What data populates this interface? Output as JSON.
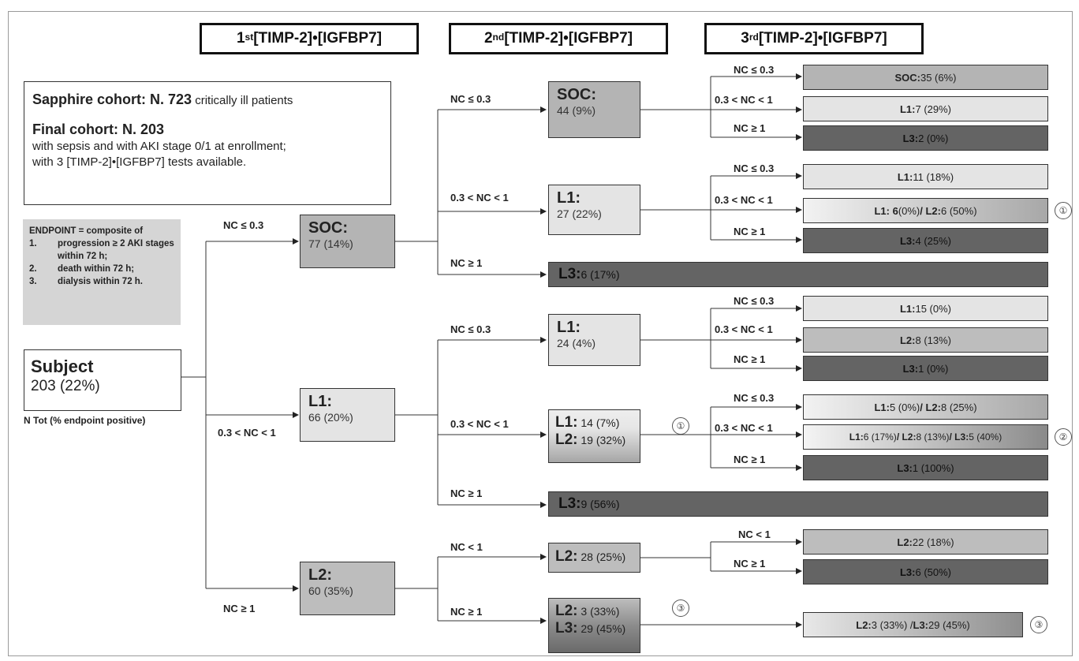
{
  "headers": [
    {
      "ord": "1",
      "sup": "st",
      "text": " [TIMP-2]•[IGFBP7]"
    },
    {
      "ord": "2",
      "sup": "nd",
      "text": " [TIMP-2]•[IGFBP7]"
    },
    {
      "ord": "3",
      "sup": "rd",
      "text": " [TIMP-2]•[IGFBP7]"
    }
  ],
  "info": {
    "line1_bold": "Sapphire cohort: N. 723",
    "line1_rest": " critically ill patients",
    "line2_bold": "Final cohort: N. 203",
    "line3": "with sepsis and with AKI stage 0/1 at enrollment;",
    "line4": "with 3 [TIMP-2]•[IGFBP7] tests available."
  },
  "endpoint": {
    "title": "ENDPOINT = composite of",
    "items": [
      {
        "n": "1.",
        "text": "progression ≥ 2 AKI stages within 72 h;"
      },
      {
        "n": "2.",
        "text": "death within 72 h;"
      },
      {
        "n": "3.",
        "text": "dialysis within 72 h."
      }
    ]
  },
  "subject": {
    "title": "Subject",
    "value": "203 (22%)",
    "note": "N Tot (% endpoint positive)"
  },
  "conditions": {
    "le03": "NC ≤ 0.3",
    "mid": "0.3 < NC < 1",
    "ge1": "NC ≥ 1",
    "lt1": "NC < 1"
  },
  "level1": {
    "soc": {
      "title": "SOC:",
      "value": "77 (14%)"
    },
    "l1": {
      "title": "L1:",
      "value": "66 (20%)"
    },
    "l2": {
      "title": "L2:",
      "value": "60 (35%)"
    }
  },
  "level2": {
    "soc": {
      "title": "SOC:",
      "value": "44 (9%)"
    },
    "l1a": {
      "title": "L1:",
      "value": "27 (22%)"
    },
    "l3a": {
      "title": "L3:",
      "value": " 6 (17%)"
    },
    "l1b": {
      "title": "L1:",
      "value": "24 (4%)"
    },
    "mix1": {
      "t1": "L1:",
      "v1": " 14 (7%)",
      "t2": "L2:",
      "v2": " 19 (32%)"
    },
    "l3b": {
      "title": "L3:",
      "value": " 9 (56%)"
    },
    "l2a": {
      "title": "L2:",
      "value": " 28 (25%)"
    },
    "mix2": {
      "t1": "L2:",
      "v1": " 3 (33%)",
      "t2": "L3:",
      "v2": " 29 (45%)"
    }
  },
  "level3": {
    "r1": {
      "b1": "SOC:",
      "t1": " 35 (6%)"
    },
    "r2": {
      "b1": "L1:",
      "t1": " 7 (29%)"
    },
    "r3": {
      "b1": "L3:",
      "t1": " 2 (0%)"
    },
    "r4": {
      "b1": "L1:",
      "t1": " 11 (18%)"
    },
    "r5": {
      "b1": "L1: 6",
      "t1": " (0%) ",
      "b2": "/ L2:",
      "t2": " 6 (50%)"
    },
    "r6": {
      "b1": "L3:",
      "t1": " 4 (25%)"
    },
    "r7": {
      "b1": "L1:",
      "t1": " 15 (0%)"
    },
    "r8": {
      "b1": "L2:",
      "t1": " 8 (13%)"
    },
    "r9": {
      "b1": "L3:",
      "t1": " 1 (0%)"
    },
    "r10": {
      "b1": "L1:",
      "t1": " 5 (0%) ",
      "b2": "/ L2:",
      "t2": " 8 (25%)"
    },
    "r11": {
      "b1": "L1:",
      "t1": " 6 (17%) ",
      "b2": "/ L2:",
      "t2": " 8 (13%) ",
      "b3": "/ L3:",
      "t3": " 5 (40%)"
    },
    "r12": {
      "b1": "L3:",
      "t1": " 1 (100%)"
    },
    "r13": {
      "b1": "L2:",
      "t1": " 22 (18%)"
    },
    "r14": {
      "b1": "L3:",
      "t1": " 6 (50%)"
    },
    "r15": {
      "b1": "L2:",
      "t1": " 3 (33%) / ",
      "b2": "L3:",
      "t2": " 29 (45%)"
    }
  },
  "markers": {
    "one": "①",
    "two": "②",
    "three": "③"
  }
}
